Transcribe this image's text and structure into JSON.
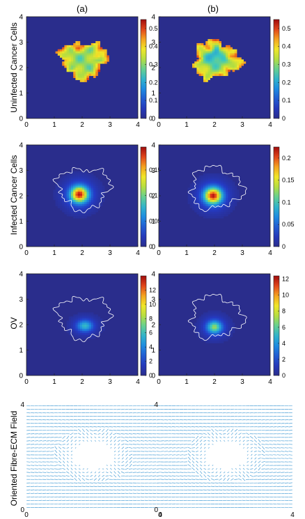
{
  "figure": {
    "column_labels": [
      "(a)",
      "(b)"
    ],
    "row_labels": [
      "Uninfected Cancer Cells",
      "Infected Cancer Cells",
      "OV",
      "Oriented Fibre-ECM Field"
    ]
  },
  "chart_data": [
    {
      "type": "heatmap",
      "panel": "row1-a",
      "row_label": "Uninfected Cancer Cells",
      "column": "(a)",
      "xlim": [
        0,
        4
      ],
      "ylim": [
        0,
        4
      ],
      "xticks": [
        "0",
        "1",
        "2",
        "3",
        "4"
      ],
      "yticks": [
        "0",
        "1",
        "2",
        "3",
        "4"
      ],
      "colorbar": {
        "min": 0,
        "max": 0.55,
        "ticks": [
          "0",
          "0.1",
          "0.2",
          "0.3",
          "0.4",
          "0.5"
        ],
        "tick_values": [
          0,
          0.1,
          0.2,
          0.3,
          0.4,
          0.5
        ]
      },
      "distribution": "irregular tumour mass centred near (2, 2.3), values mostly 0.25-0.45 with peaks near 0.5 at the rim and spots",
      "colors": {
        "background": "#2a2d8c",
        "high": "#a70d0d"
      }
    },
    {
      "type": "heatmap",
      "panel": "row1-b",
      "row_label": "Uninfected Cancer Cells",
      "column": "(b)",
      "xlim": [
        0,
        4
      ],
      "ylim": [
        0,
        4
      ],
      "xticks": [
        "0",
        "1",
        "2",
        "3",
        "4"
      ],
      "yticks": [
        "0",
        "1",
        "2",
        "3",
        "4"
      ],
      "colorbar": {
        "min": 0,
        "max": 0.55,
        "ticks": [
          "0",
          "0.1",
          "0.2",
          "0.3",
          "0.4",
          "0.5"
        ],
        "tick_values": [
          0,
          0.1,
          0.2,
          0.3,
          0.4,
          0.5
        ]
      },
      "distribution": "irregular tumour mass centred near (2, 2.3) with a lower-valued core near (2, 2.4)",
      "colors": {
        "background": "#2a2d8c",
        "high": "#a70d0d"
      }
    },
    {
      "type": "heatmap",
      "panel": "row2-a",
      "row_label": "Infected Cancer Cells",
      "column": "(a)",
      "xlim": [
        0,
        4
      ],
      "ylim": [
        0,
        4
      ],
      "xticks": [
        "0",
        "1",
        "2",
        "3",
        "4"
      ],
      "yticks": [
        "0",
        "1",
        "2",
        "3",
        "4"
      ],
      "colorbar": {
        "min": 0,
        "max": 0.195,
        "ticks": [
          "0",
          "0.05",
          "0.1",
          "0.15"
        ],
        "tick_values": [
          0,
          0.05,
          0.1,
          0.15
        ]
      },
      "distribution": "single blob peaking near 0.19 at (1.9, 2.05), white tumour outline",
      "colors": {
        "background": "#2a2d8c",
        "high": "#a70d0d",
        "outline": "#ffffff"
      }
    },
    {
      "type": "heatmap",
      "panel": "row2-b",
      "row_label": "Infected Cancer Cells",
      "column": "(b)",
      "xlim": [
        0,
        4
      ],
      "ylim": [
        0,
        4
      ],
      "xticks": [
        "0",
        "1",
        "2",
        "3",
        "4"
      ],
      "yticks": [
        "0",
        "1",
        "2",
        "3",
        "4"
      ],
      "colorbar": {
        "min": 0,
        "max": 0.225,
        "ticks": [
          "0",
          "0.05",
          "0.1",
          "0.15",
          "0.2"
        ],
        "tick_values": [
          0,
          0.05,
          0.1,
          0.15,
          0.2
        ]
      },
      "distribution": "single blob peaking near 0.22 at (1.95, 2.0), white tumour outline",
      "colors": {
        "background": "#2a2d8c",
        "high": "#a70d0d",
        "outline": "#ffffff"
      }
    },
    {
      "type": "heatmap",
      "panel": "row3-a",
      "row_label": "OV",
      "column": "(a)",
      "xlim": [
        0,
        4
      ],
      "ylim": [
        0,
        4
      ],
      "xticks": [
        "0",
        "1",
        "2",
        "3",
        "4"
      ],
      "yticks": [
        "0",
        "1",
        "2",
        "3",
        "4"
      ],
      "colorbar": {
        "min": 0,
        "max": 14,
        "ticks": [
          "0",
          "2",
          "4",
          "6",
          "8",
          "10",
          "12"
        ],
        "tick_values": [
          0,
          2,
          4,
          6,
          8,
          10,
          12
        ]
      },
      "distribution": "small blob near (2.1, 1.95) with values up to about 5-6",
      "colors": {
        "background": "#2a2d8c",
        "high": "#a70d0d",
        "outline": "#ffffff"
      }
    },
    {
      "type": "heatmap",
      "panel": "row3-b",
      "row_label": "OV",
      "column": "(b)",
      "xlim": [
        0,
        4
      ],
      "ylim": [
        0,
        4
      ],
      "xticks": [
        "0",
        "1",
        "2",
        "3",
        "4"
      ],
      "yticks": [
        "0",
        "1",
        "2",
        "3",
        "4"
      ],
      "colorbar": {
        "min": 0,
        "max": 12.4,
        "ticks": [
          "0",
          "2",
          "4",
          "6",
          "8",
          "10",
          "12"
        ],
        "tick_values": [
          0,
          2,
          4,
          6,
          8,
          10,
          12
        ]
      },
      "distribution": "small blob near (2.0, 1.9) with values up to about 6-7",
      "colors": {
        "background": "#2a2d8c",
        "high": "#a70d0d",
        "outline": "#ffffff"
      }
    },
    {
      "type": "scatter",
      "mark": "quiver",
      "panel": "row4-a",
      "row_label": "Oriented Fibre-ECM Field",
      "column": "(a)",
      "xlim": [
        0,
        4
      ],
      "ylim": [
        0,
        4
      ],
      "xticks": [
        "0",
        "4"
      ],
      "yticks": [
        "0",
        "4"
      ],
      "distribution": "short near-horizontal arrows on a grid, with a degraded gap around the tumour centre near (2, 2)",
      "colors": {
        "arrows": "#4a9fd6"
      }
    },
    {
      "type": "scatter",
      "mark": "quiver",
      "panel": "row4-b",
      "row_label": "Oriented Fibre-ECM Field",
      "column": "(b)",
      "xlim": [
        0,
        4
      ],
      "ylim": [
        0,
        4
      ],
      "xticks": [
        "0",
        "4"
      ],
      "yticks": [
        "0",
        "4"
      ],
      "distribution": "short near-horizontal arrows on a grid, with a degraded gap around the tumour centre near (2, 2)",
      "colors": {
        "arrows": "#4a9fd6"
      }
    }
  ]
}
